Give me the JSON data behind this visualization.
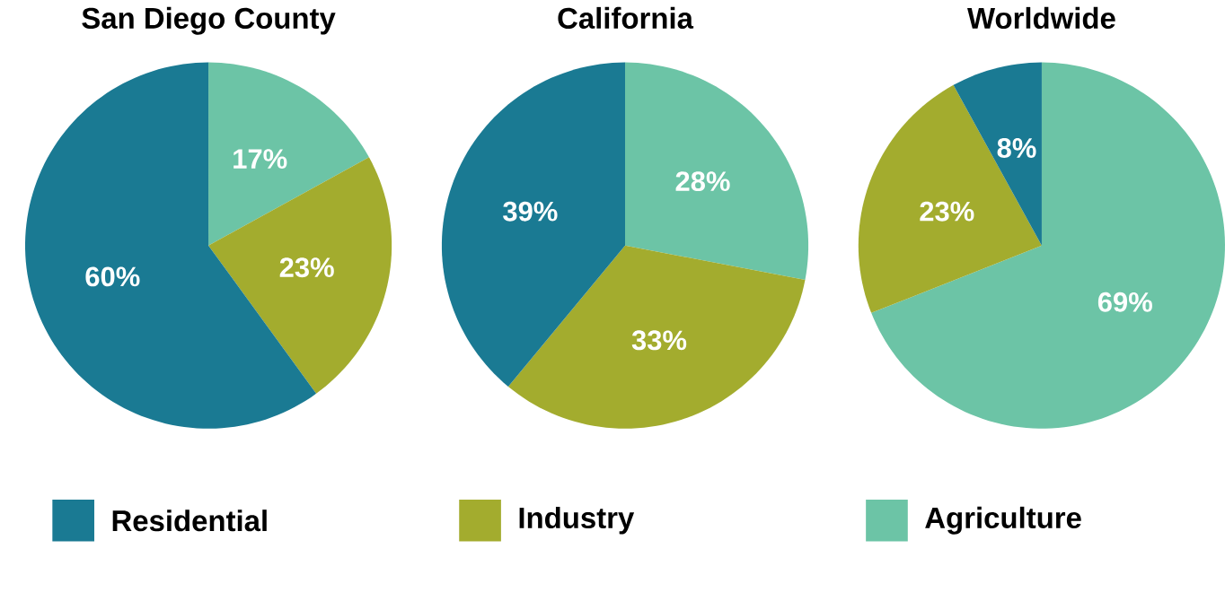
{
  "chart_data": [
    {
      "type": "pie",
      "title": "San Diego County",
      "categories": [
        "Agriculture",
        "Industry",
        "Residential"
      ],
      "values": [
        17,
        23,
        60
      ],
      "value_labels": [
        "17%",
        "23%",
        "60%"
      ],
      "colors": [
        "#6cc4a6",
        "#a3ac2e",
        "#1a7a93"
      ],
      "legend": "bottom"
    },
    {
      "type": "pie",
      "title": "California",
      "categories": [
        null,
        null,
        null
      ],
      "values": [
        28,
        33,
        39
      ],
      "value_labels": [
        "28%",
        "33%",
        "39%"
      ],
      "colors": [
        "#6cc4a6",
        "#a3ac2e",
        "#1a7a93"
      ]
    },
    {
      "type": "pie",
      "title": "Worldwide",
      "categories": [
        null,
        null,
        null
      ],
      "values": [
        69,
        23,
        8
      ],
      "value_labels": [
        "69%",
        "23%",
        "8%"
      ],
      "colors": [
        "#6cc4a6",
        "#a3ac2e",
        "#1a7a93"
      ]
    }
  ]
}
